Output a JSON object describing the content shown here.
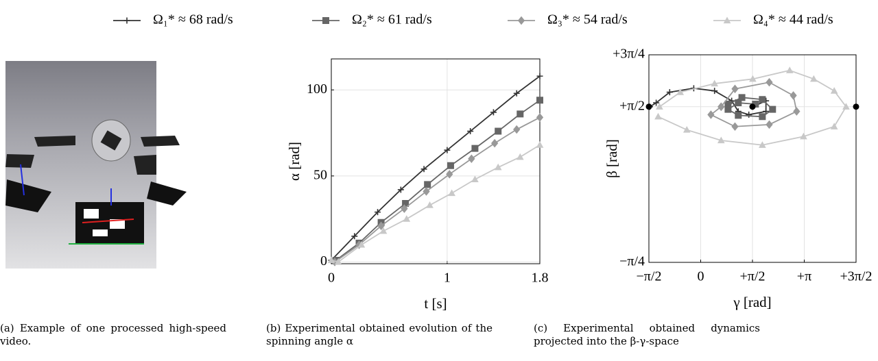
{
  "chart_data": [
    {
      "type": "line",
      "xlabel": "t [s]",
      "ylabel": "α [rad]",
      "xlim": [
        0,
        1.8
      ],
      "ylim": [
        -1,
        118
      ],
      "xticks": [
        0,
        1,
        1.8
      ],
      "yticks": [
        0,
        50,
        100
      ],
      "grid": true,
      "series": [
        {
          "name": "Ω₁* ≈ 68 rad/s",
          "color": "#333333",
          "marker": "plus",
          "x": [
            0,
            0.2,
            0.4,
            0.6,
            0.8,
            1.0,
            1.2,
            1.4,
            1.6,
            1.8
          ],
          "values": [
            1,
            15,
            29,
            42,
            54,
            65,
            76,
            87,
            98,
            108
          ]
        },
        {
          "name": "Ω₂* ≈ 61 rad/s",
          "color": "#666666",
          "marker": "square",
          "x": [
            0.04,
            0.24,
            0.43,
            0.64,
            0.83,
            1.03,
            1.24,
            1.44,
            1.63,
            1.8
          ],
          "values": [
            1,
            11,
            23,
            34,
            45,
            56,
            66,
            76,
            86,
            94
          ]
        },
        {
          "name": "Ω₃* ≈ 54 rad/s",
          "color": "#999999",
          "marker": "diamond",
          "x": [
            0.03,
            0.24,
            0.43,
            0.63,
            0.82,
            1.02,
            1.21,
            1.41,
            1.6,
            1.8
          ],
          "values": [
            0,
            10,
            21,
            31,
            41,
            51,
            60,
            69,
            77,
            84
          ]
        },
        {
          "name": "Ω₄* ≈ 44 rad/s",
          "color": "#c8c8c8",
          "marker": "triangle",
          "x": [
            0,
            0.06,
            0.26,
            0.45,
            0.65,
            0.85,
            1.04,
            1.24,
            1.44,
            1.63,
            1.8
          ],
          "values": [
            1,
            0,
            10,
            18,
            25,
            33,
            40,
            48,
            55,
            61,
            68
          ]
        }
      ]
    },
    {
      "type": "line",
      "xlabel": "γ [rad]",
      "ylabel": "β [rad]",
      "xlim": [
        -1.5708,
        4.7124
      ],
      "ylim": [
        -0.7854,
        2.3562
      ],
      "xticks": [
        {
          "value": -1.5708,
          "label": "−π/2"
        },
        0,
        {
          "value": 1.5708,
          "label": "+π/2"
        },
        {
          "value": 3.1416,
          "label": "+π"
        },
        {
          "value": 4.7124,
          "label": "+3π/2"
        }
      ],
      "yticks": [
        {
          "value": -0.7854,
          "label": "−π/4"
        },
        {
          "value": 1.5708,
          "label": "+π/2"
        },
        {
          "value": 2.3562,
          "label": "+3π/4"
        }
      ],
      "grid": true,
      "series": [
        {
          "color": "#333333",
          "marker": "plus",
          "x": [
            -1.54,
            -1.35,
            -0.94,
            -0.21,
            0.42,
            0.94,
            1.14,
            1.46,
            1.98,
            1.98,
            1.58
          ],
          "values": [
            1.57,
            1.63,
            1.79,
            1.85,
            1.81,
            1.66,
            1.5,
            1.45,
            1.5,
            1.66,
            1.57
          ]
        },
        {
          "color": "#666666",
          "marker": "square",
          "x": [
            0.83,
            1.25,
            1.87,
            2.18,
            1.87,
            1.14,
            0.83,
            1.14,
            1.66
          ],
          "values": [
            1.61,
            1.71,
            1.68,
            1.53,
            1.42,
            1.44,
            1.53,
            1.63,
            1.61
          ]
        },
        {
          "color": "#999999",
          "marker": "diamond",
          "x": [
            0.62,
            1.04,
            2.08,
            2.81,
            2.91,
            2.08,
            1.04,
            0.31,
            0.62
          ],
          "values": [
            1.57,
            1.84,
            1.94,
            1.74,
            1.5,
            1.3,
            1.27,
            1.45,
            1.57
          ]
        },
        {
          "color": "#c8c8c8",
          "marker": "triangle",
          "x": [
            -1.29,
            -0.42,
            0.62,
            1.87,
            3.12,
            4.05,
            4.41,
            4.05,
            3.43,
            2.7,
            1.58,
            0.42,
            -0.62,
            -1.25
          ],
          "values": [
            1.42,
            1.22,
            1.06,
            0.99,
            1.12,
            1.27,
            1.57,
            1.81,
            1.99,
            2.12,
            1.99,
            1.92,
            1.79,
            1.57
          ]
        }
      ],
      "points": {
        "color": "#000000",
        "x": [
          -1.5708,
          1.5708,
          4.7124
        ],
        "values": [
          1.5708,
          1.5708,
          1.5708
        ]
      }
    }
  ],
  "captions": [
    "(a) Example of one processed high-speed video.",
    "(b) Experimental obtained evolution of the spinning angle α",
    "(c) Experimental obtained dynamics projected into the β-γ-space"
  ]
}
